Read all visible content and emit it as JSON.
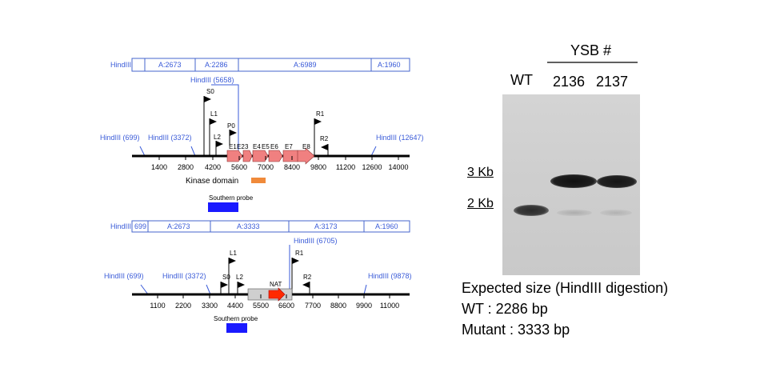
{
  "top_map": {
    "fragments": [
      {
        "label": "HindIII"
      },
      {
        "label": "A:2673"
      },
      {
        "label": "A:2286"
      },
      {
        "label": "A:6989"
      },
      {
        "label": "A:1960"
      }
    ],
    "hind_sites": [
      "HindIII (699)",
      "HindIII (3372)",
      "HindIII (5658)",
      "HindIII (12647)"
    ],
    "primers": [
      "S0",
      "L1",
      "P0",
      "L2",
      "R1",
      "R2"
    ],
    "exons": [
      "E1",
      "E2",
      "3",
      "E4",
      "E5",
      "E6",
      "E7",
      "E8"
    ],
    "ticks": [
      "1400",
      "2800",
      "4200",
      "5600",
      "7000",
      "8400",
      "9800",
      "11200",
      "12600",
      "14000"
    ],
    "kinase_label": "Kinase domain",
    "probe_label": "Southern probe",
    "colors": {
      "exon": "#f08080",
      "kinase": "#f08a3a",
      "probe": "#1a1aff",
      "site": "#3a5bd8"
    }
  },
  "bottom_map": {
    "fragments": [
      {
        "label": "HindIII"
      },
      {
        "label": "699"
      },
      {
        "label": "A:2673"
      },
      {
        "label": "A:3333"
      },
      {
        "label": "A:3173"
      },
      {
        "label": "A:1960"
      }
    ],
    "hind_sites": [
      "HindIII (699)",
      "HindIII (3372)",
      "HindIII (6705)",
      "HindIII (9878)"
    ],
    "primers": [
      "L1",
      "R1",
      "S0",
      "L2",
      "R2"
    ],
    "cassette_label": "NAT",
    "ticks": [
      "1100",
      "2200",
      "3300",
      "4400",
      "5500",
      "6600",
      "7700",
      "8800",
      "9900",
      "11000"
    ],
    "probe_label": "Southern probe",
    "colors": {
      "cassette": "#ff2a00",
      "cassette_box": "#cfcfcf"
    }
  },
  "gel": {
    "group_label": "YSB #",
    "lanes": [
      "WT",
      "2136",
      "2137"
    ],
    "markers": [
      "3 Kb",
      "2 Kb"
    ],
    "bands": [
      {
        "lane": "WT",
        "size_kb": 2.286
      },
      {
        "lane": "2136",
        "size_kb": 3.333
      },
      {
        "lane": "2137",
        "size_kb": 3.333
      }
    ]
  },
  "notes": {
    "title": "Expected size (HindIII digestion)",
    "wt": "WT : 2286 bp",
    "mutant": "Mutant : 3333 bp"
  }
}
